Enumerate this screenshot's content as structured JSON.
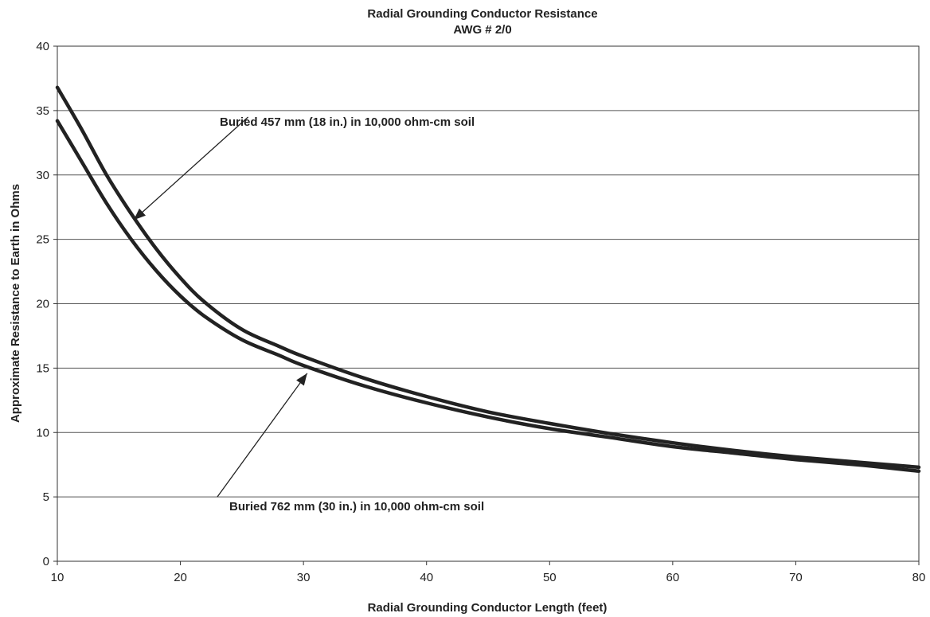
{
  "chart_data": {
    "type": "line",
    "title": "Radial Grounding Conductor Resistance",
    "subtitle": "AWG # 2/0",
    "xlabel": "Radial Grounding Conductor Length (feet)",
    "ylabel": "Approximate Resistance to Earth in Ohms",
    "xlim": [
      10,
      80
    ],
    "ylim": [
      0,
      40
    ],
    "x_ticks": [
      10,
      20,
      30,
      40,
      50,
      60,
      70,
      80
    ],
    "y_ticks": [
      0,
      5,
      10,
      15,
      20,
      25,
      30,
      35,
      40
    ],
    "grid": "horizontal",
    "legend": "none",
    "series": [
      {
        "name": "Buried 457 mm (18 in.) in 10,000 ohm-cm soil",
        "x": [
          10,
          12,
          14,
          16,
          18,
          20,
          22,
          25,
          28,
          30,
          35,
          40,
          45,
          50,
          55,
          60,
          65,
          70,
          75,
          80
        ],
        "y": [
          36.8,
          33.5,
          30.0,
          27.0,
          24.3,
          22.0,
          20.1,
          18.0,
          16.7,
          15.9,
          14.2,
          12.8,
          11.6,
          10.7,
          9.9,
          9.2,
          8.6,
          8.1,
          7.7,
          7.3
        ]
      },
      {
        "name": "Buried 762 mm (30 in.) in 10,000 ohm-cm soil",
        "x": [
          10,
          12,
          14,
          16,
          18,
          20,
          22,
          25,
          28,
          30,
          35,
          40,
          45,
          50,
          55,
          60,
          65,
          70,
          75,
          80
        ],
        "y": [
          34.2,
          31.0,
          27.8,
          25.0,
          22.6,
          20.6,
          19.0,
          17.2,
          16.0,
          15.2,
          13.6,
          12.3,
          11.2,
          10.3,
          9.6,
          8.9,
          8.4,
          7.9,
          7.5,
          7.0
        ]
      }
    ],
    "annotations": [
      {
        "text": "Buried 457 mm (18 in.) in 10,000 ohm-cm soil",
        "series": 0,
        "target_x": 16.2,
        "target_y": 26.5,
        "tail_x": 25.5,
        "tail_y": 34.5
      },
      {
        "text": "Buried 762 mm (30 in.) in 10,000 ohm-cm soil",
        "series": 1,
        "target_x": 30.3,
        "target_y": 14.6,
        "tail_x": 23.0,
        "tail_y": 5.0
      }
    ]
  }
}
